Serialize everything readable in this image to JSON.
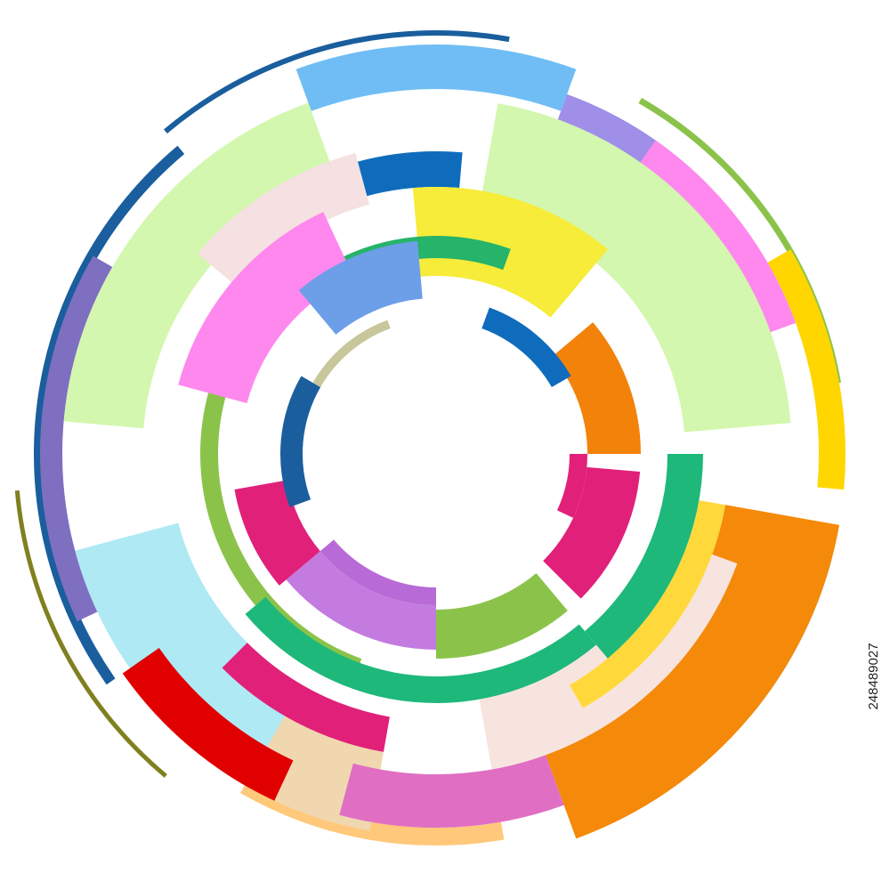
{
  "stock_id": "248489027"
}
